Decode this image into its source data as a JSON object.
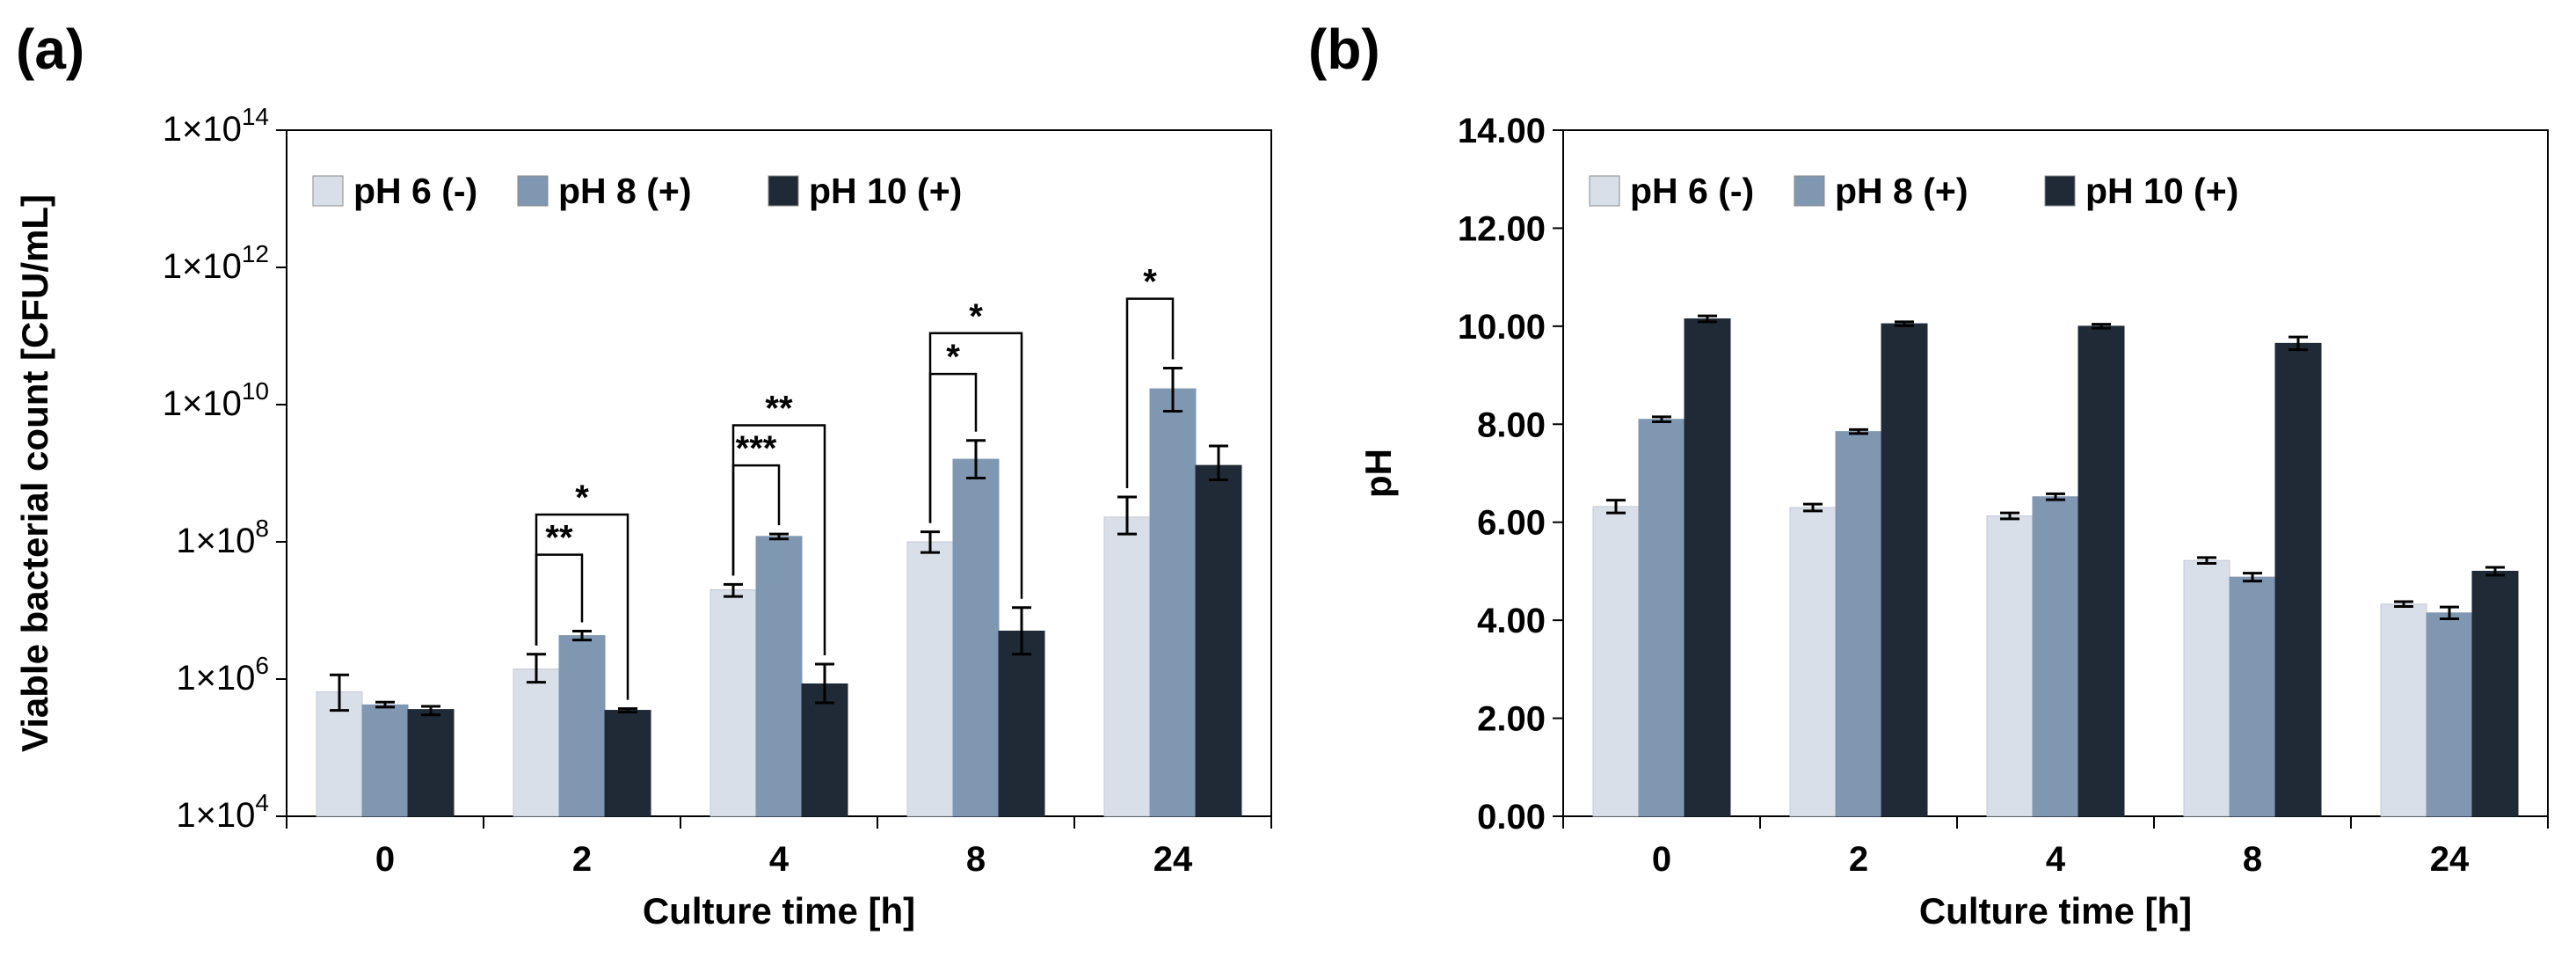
{
  "colors": {
    "pH6": "#d9dfe8",
    "pH8": "#8097b2",
    "pH10": "#1f2a36"
  },
  "chart_data": [
    {
      "panel": "(a)",
      "type": "bar",
      "scale": "log",
      "xlabel": "Culture time [h]",
      "ylabel": "Viable bacterial count [CFU/mL]",
      "ylim": [
        10000,
        100000000000000
      ],
      "ytick_labels": [
        {
          "mant": "1",
          "exp": "4",
          "value": 10000
        },
        {
          "mant": "1",
          "exp": "6",
          "value": 1000000
        },
        {
          "mant": "1",
          "exp": "8",
          "value": 100000000
        },
        {
          "mant": "1",
          "exp": "10",
          "value": 10000000000
        },
        {
          "mant": "1",
          "exp": "12",
          "value": 1000000000000
        },
        {
          "mant": "1",
          "exp": "14",
          "value": 100000000000000
        }
      ],
      "times_symbol": "×",
      "categories": [
        "0",
        "2",
        "4",
        "8",
        "24"
      ],
      "legend": [
        "pH 6 (-)",
        "pH 8 (+)",
        "pH 10 (+)"
      ],
      "series": [
        {
          "name": "pH 6 (-)",
          "values": [
            650000,
            1400000,
            20000000,
            100000000,
            230000000
          ],
          "err_low": [
            350000,
            900000,
            16000000,
            70000000,
            130000000
          ],
          "err_high": [
            1150000,
            2300000,
            24000000,
            140000000,
            450000000
          ]
        },
        {
          "name": "pH 8 (+)",
          "values": [
            420000,
            4300000,
            120000000,
            1600000000,
            17000000000
          ],
          "err_low": [
            390000,
            3700000,
            110000000,
            850000000,
            8000000000
          ],
          "err_high": [
            460000,
            5000000,
            130000000,
            3000000000,
            34000000000
          ]
        },
        {
          "name": "pH 10 (+)",
          "values": [
            360000,
            350000,
            850000,
            5000000,
            1300000000
          ],
          "err_low": [
            300000,
            330000,
            450000,
            2300000,
            800000000
          ],
          "err_high": [
            400000,
            370000,
            1650000,
            11000000,
            2500000000
          ]
        }
      ],
      "significance": [
        {
          "group": 1,
          "from": 0,
          "to": 1,
          "label": "**",
          "level": 65000000
        },
        {
          "group": 1,
          "from": 0,
          "to": 2,
          "label": "*",
          "level": 250000000
        },
        {
          "group": 2,
          "from": 0,
          "to": 1,
          "label": "***",
          "level": 1300000000
        },
        {
          "group": 2,
          "from": 0,
          "to": 2,
          "label": "**",
          "level": 5000000000
        },
        {
          "group": 3,
          "from": 0,
          "to": 1,
          "label": "*",
          "level": 28000000000
        },
        {
          "group": 3,
          "from": 0,
          "to": 2,
          "label": "*",
          "level": 110000000000
        },
        {
          "group": 4,
          "from": 0,
          "to": 1,
          "label": "*",
          "level": 350000000000
        }
      ]
    },
    {
      "panel": "(b)",
      "type": "bar",
      "scale": "linear",
      "xlabel": "Culture time [h]",
      "ylabel": "pH",
      "ylim": [
        0,
        14
      ],
      "ytick_labels": [
        "0.00",
        "2.00",
        "4.00",
        "6.00",
        "8.00",
        "10.00",
        "12.00",
        "14.00"
      ],
      "categories": [
        "0",
        "2",
        "4",
        "8",
        "24"
      ],
      "legend": [
        "pH 6 (-)",
        "pH 8 (+)",
        "pH 10 (+)"
      ],
      "series": [
        {
          "name": "pH 6 (-)",
          "values": [
            6.32,
            6.3,
            6.13,
            5.22,
            4.33
          ],
          "err": [
            0.13,
            0.07,
            0.06,
            0.06,
            0.05
          ]
        },
        {
          "name": "pH 8 (+)",
          "values": [
            8.1,
            7.85,
            6.52,
            4.88,
            4.15
          ],
          "err": [
            0.05,
            0.04,
            0.06,
            0.08,
            0.12
          ]
        },
        {
          "name": "pH 10 (+)",
          "values": [
            10.15,
            10.05,
            10.0,
            9.65,
            5.0
          ],
          "err": [
            0.06,
            0.04,
            0.04,
            0.13,
            0.08
          ]
        }
      ]
    }
  ]
}
